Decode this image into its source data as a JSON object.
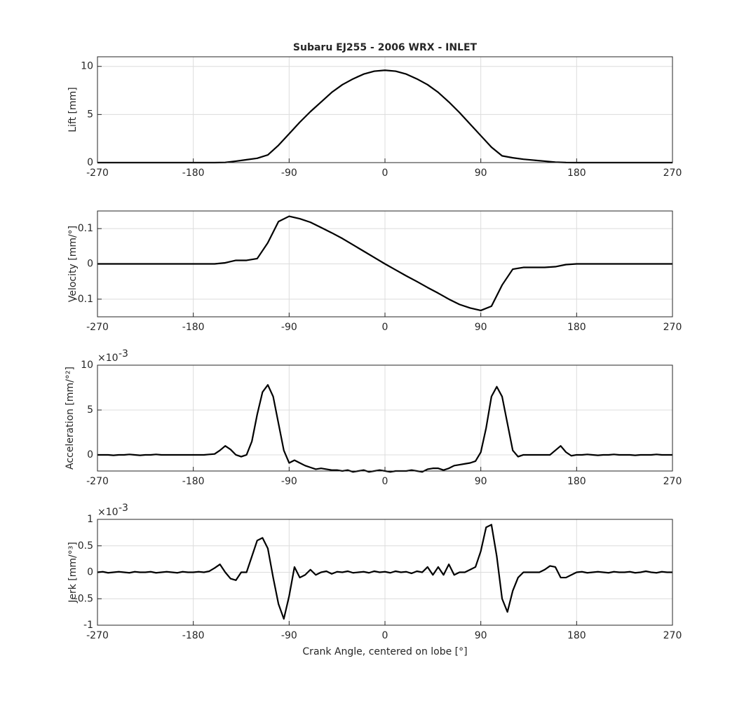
{
  "chart_data": [
    {
      "type": "line",
      "title": "Subaru EJ255 - 2006 WRX - INLET",
      "ylabel": "Lift [mm]",
      "color": "#000000",
      "grid": true,
      "x": [
        -270,
        -260,
        -250,
        -240,
        -230,
        -220,
        -210,
        -200,
        -190,
        -180,
        -170,
        -160,
        -150,
        -140,
        -130,
        -120,
        -110,
        -100,
        -90,
        -80,
        -70,
        -60,
        -50,
        -40,
        -30,
        -20,
        -10,
        0,
        10,
        20,
        30,
        40,
        50,
        60,
        70,
        80,
        90,
        100,
        110,
        120,
        130,
        140,
        150,
        160,
        170,
        180,
        190,
        200,
        210,
        220,
        230,
        240,
        250,
        260,
        270
      ],
      "values": [
        0,
        0,
        0,
        0,
        0,
        0,
        0,
        0,
        0,
        0,
        0,
        0,
        0.02,
        0.15,
        0.3,
        0.45,
        0.8,
        1.8,
        3.0,
        4.2,
        5.3,
        6.3,
        7.3,
        8.1,
        8.7,
        9.2,
        9.5,
        9.6,
        9.5,
        9.2,
        8.7,
        8.1,
        7.3,
        6.3,
        5.2,
        4.0,
        2.8,
        1.6,
        0.7,
        0.5,
        0.35,
        0.25,
        0.15,
        0.05,
        0.01,
        0,
        0,
        0,
        0,
        0,
        0,
        0,
        0,
        0,
        0
      ],
      "xlim": [
        -270,
        270
      ],
      "xticks": [
        -270,
        -180,
        -90,
        0,
        90,
        180,
        270
      ],
      "ylim": [
        0,
        11
      ],
      "yticks": [
        0,
        5,
        10
      ]
    },
    {
      "type": "line",
      "ylabel": "Velocity [mm/°]",
      "color": "#000000",
      "grid": true,
      "x": [
        -270,
        -260,
        -250,
        -240,
        -230,
        -220,
        -210,
        -200,
        -190,
        -180,
        -170,
        -160,
        -150,
        -140,
        -130,
        -120,
        -110,
        -100,
        -90,
        -80,
        -70,
        -60,
        -50,
        -40,
        -30,
        -20,
        -10,
        0,
        10,
        20,
        30,
        40,
        50,
        60,
        70,
        80,
        90,
        100,
        110,
        120,
        130,
        140,
        150,
        160,
        170,
        180,
        190,
        200,
        210,
        220,
        230,
        240,
        250,
        260,
        270
      ],
      "values": [
        0,
        0,
        0,
        0,
        0,
        0,
        0,
        0,
        0,
        0,
        0,
        0,
        0.003,
        0.01,
        0.01,
        0.015,
        0.06,
        0.12,
        0.135,
        0.128,
        0.118,
        0.103,
        0.088,
        0.072,
        0.054,
        0.036,
        0.018,
        0,
        -0.017,
        -0.034,
        -0.05,
        -0.067,
        -0.083,
        -0.1,
        -0.115,
        -0.125,
        -0.132,
        -0.12,
        -0.06,
        -0.015,
        -0.01,
        -0.01,
        -0.01,
        -0.008,
        -0.002,
        0,
        0,
        0,
        0,
        0,
        0,
        0,
        0,
        0,
        0
      ],
      "xlim": [
        -270,
        270
      ],
      "xticks": [
        -270,
        -180,
        -90,
        0,
        90,
        180,
        270
      ],
      "ylim": [
        -0.15,
        0.15
      ],
      "yticks": [
        -0.1,
        0,
        0.1
      ]
    },
    {
      "type": "line",
      "ylabel": "Acceleration [mm/°²]",
      "y_multiplier": "×10",
      "y_multiplier_exponent": "-3",
      "color": "#000000",
      "grid": true,
      "x": [
        -270,
        -265,
        -260,
        -255,
        -250,
        -245,
        -240,
        -235,
        -230,
        -225,
        -220,
        -215,
        -210,
        -205,
        -200,
        -195,
        -190,
        -185,
        -180,
        -175,
        -170,
        -165,
        -160,
        -155,
        -150,
        -145,
        -140,
        -135,
        -130,
        -125,
        -120,
        -115,
        -110,
        -105,
        -100,
        -95,
        -90,
        -85,
        -80,
        -75,
        -70,
        -65,
        -60,
        -55,
        -50,
        -45,
        -40,
        -35,
        -30,
        -25,
        -20,
        -15,
        -10,
        -5,
        0,
        5,
        10,
        15,
        20,
        25,
        30,
        35,
        40,
        45,
        50,
        55,
        60,
        65,
        70,
        75,
        80,
        85,
        90,
        95,
        100,
        105,
        110,
        115,
        120,
        125,
        130,
        135,
        140,
        145,
        150,
        155,
        160,
        165,
        170,
        175,
        180,
        185,
        190,
        195,
        200,
        205,
        210,
        215,
        220,
        225,
        230,
        235,
        240,
        245,
        250,
        255,
        260,
        265,
        270
      ],
      "values": [
        0,
        0,
        0,
        -0.05,
        0,
        0,
        0.05,
        0,
        -0.05,
        0,
        0,
        0.05,
        0,
        0,
        0,
        0,
        0,
        0,
        0,
        0,
        0,
        0.05,
        0.1,
        0.5,
        1.0,
        0.6,
        0,
        -0.2,
        0,
        1.5,
        4.5,
        7.0,
        7.8,
        6.5,
        3.5,
        0.5,
        -0.9,
        -0.6,
        -0.9,
        -1.2,
        -1.4,
        -1.6,
        -1.5,
        -1.6,
        -1.7,
        -1.7,
        -1.8,
        -1.7,
        -1.9,
        -1.8,
        -1.7,
        -1.9,
        -1.8,
        -1.7,
        -1.8,
        -1.9,
        -1.8,
        -1.8,
        -1.8,
        -1.7,
        -1.8,
        -1.9,
        -1.6,
        -1.5,
        -1.5,
        -1.7,
        -1.5,
        -1.2,
        -1.1,
        -1.0,
        -0.9,
        -0.7,
        0.3,
        3.0,
        6.5,
        7.6,
        6.5,
        3.5,
        0.5,
        -0.2,
        0,
        0,
        0,
        0,
        0,
        0,
        0.5,
        1.0,
        0.3,
        -0.1,
        0,
        0,
        0.05,
        0,
        -0.05,
        0,
        0,
        0.05,
        0,
        0,
        0,
        -0.05,
        0,
        0,
        0,
        0.05,
        0,
        0,
        0
      ],
      "xlim": [
        -270,
        270
      ],
      "xticks": [
        -270,
        -180,
        -90,
        0,
        90,
        180,
        270
      ],
      "ylim": [
        -1.8,
        10
      ],
      "yticks": [
        0,
        5,
        10
      ]
    },
    {
      "type": "line",
      "ylabel": "Jerk [mm/°³]",
      "y_multiplier": "×10",
      "y_multiplier_exponent": "-3",
      "xlabel": "Crank Angle, centered on lobe [°]",
      "color": "#000000",
      "grid": true,
      "x": [
        -270,
        -265,
        -260,
        -255,
        -250,
        -245,
        -240,
        -235,
        -230,
        -225,
        -220,
        -215,
        -210,
        -205,
        -200,
        -195,
        -190,
        -185,
        -180,
        -175,
        -170,
        -165,
        -160,
        -155,
        -150,
        -145,
        -140,
        -135,
        -130,
        -125,
        -120,
        -115,
        -110,
        -105,
        -100,
        -95,
        -90,
        -85,
        -80,
        -75,
        -70,
        -65,
        -60,
        -55,
        -50,
        -45,
        -40,
        -35,
        -30,
        -25,
        -20,
        -15,
        -10,
        -5,
        0,
        5,
        10,
        15,
        20,
        25,
        30,
        35,
        40,
        45,
        50,
        55,
        60,
        65,
        70,
        75,
        80,
        85,
        90,
        95,
        100,
        105,
        110,
        115,
        120,
        125,
        130,
        135,
        140,
        145,
        150,
        155,
        160,
        165,
        170,
        175,
        180,
        185,
        190,
        195,
        200,
        205,
        210,
        215,
        220,
        225,
        230,
        235,
        240,
        245,
        250,
        255,
        260,
        265,
        270
      ],
      "values": [
        0,
        0.01,
        -0.01,
        0,
        0.01,
        0,
        -0.01,
        0.01,
        0,
        0,
        0.01,
        -0.01,
        0,
        0.01,
        0,
        -0.01,
        0.01,
        0,
        0,
        0.01,
        0,
        0.02,
        0.08,
        0.15,
        0,
        -0.12,
        -0.15,
        0,
        0,
        0.3,
        0.6,
        0.65,
        0.45,
        -0.1,
        -0.6,
        -0.88,
        -0.45,
        0.1,
        -0.1,
        -0.05,
        0.05,
        -0.05,
        0,
        0.02,
        -0.03,
        0.01,
        0,
        0.02,
        -0.01,
        0,
        0.01,
        -0.01,
        0.02,
        0,
        0.01,
        -0.01,
        0.02,
        0,
        0.01,
        -0.02,
        0.02,
        0,
        0.1,
        -0.05,
        0.1,
        -0.05,
        0.15,
        -0.05,
        0,
        0,
        0.05,
        0.1,
        0.4,
        0.85,
        0.9,
        0.3,
        -0.5,
        -0.75,
        -0.35,
        -0.1,
        0,
        0,
        0,
        0,
        0.05,
        0.12,
        0.1,
        -0.1,
        -0.1,
        -0.05,
        0,
        0.01,
        -0.01,
        0,
        0.01,
        0,
        -0.01,
        0.01,
        0,
        0,
        0.01,
        -0.01,
        0,
        0.02,
        0,
        -0.01,
        0.01,
        0,
        0
      ],
      "xlim": [
        -270,
        270
      ],
      "xticks": [
        -270,
        -180,
        -90,
        0,
        90,
        180,
        270
      ],
      "ylim": [
        -1,
        1
      ],
      "yticks": [
        -1,
        -0.5,
        0,
        0.5,
        1
      ]
    }
  ]
}
